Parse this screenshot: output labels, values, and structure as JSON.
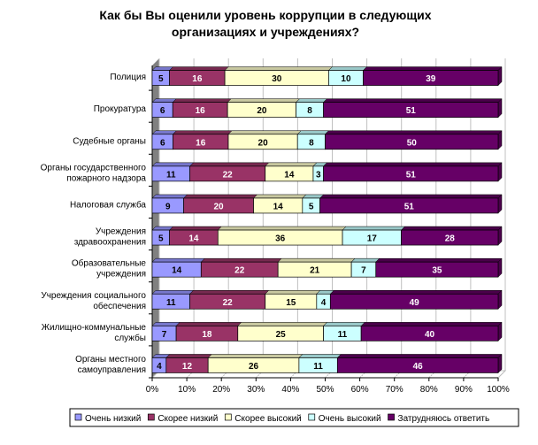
{
  "chart_data": {
    "type": "bar",
    "orientation": "horizontal",
    "stacked": "percent",
    "title_lines": [
      "Как бы Вы оценили уровень коррупции в следующих",
      "организациях и учреждениях?"
    ],
    "categories": [
      [
        "Полиция"
      ],
      [
        "Прокуратура"
      ],
      [
        "Судебные органы"
      ],
      [
        "Органы государственного",
        "пожарного надзора"
      ],
      [
        "Налоговая служба"
      ],
      [
        "Учреждения",
        "здравоохранения"
      ],
      [
        "Образовательные",
        "учреждения"
      ],
      [
        "Учреждения социального",
        "обеспечения"
      ],
      [
        "Жилищно-коммунальные",
        "службы"
      ],
      [
        "Органы местного",
        "самоуправления"
      ]
    ],
    "series": [
      {
        "name": "Очень низкий",
        "color": "#9999ff",
        "top": "#7777cc",
        "text": "#000000",
        "values": [
          5,
          6,
          6,
          11,
          9,
          5,
          14,
          11,
          7,
          4
        ]
      },
      {
        "name": "Скорее низкий",
        "color": "#993366",
        "top": "#772a50",
        "text": "#ffffff",
        "values": [
          16,
          16,
          16,
          22,
          20,
          14,
          22,
          22,
          18,
          12
        ]
      },
      {
        "name": "Скорее высокий",
        "color": "#ffffcc",
        "top": "#c8c8a0",
        "text": "#000000",
        "values": [
          30,
          20,
          20,
          14,
          14,
          36,
          21,
          15,
          25,
          26
        ]
      },
      {
        "name": "Очень высокий",
        "color": "#ccffff",
        "top": "#99c8c8",
        "text": "#000000",
        "values": [
          10,
          8,
          8,
          3,
          5,
          17,
          7,
          4,
          11,
          11
        ]
      },
      {
        "name": "Затрудняюсь ответить",
        "color": "#660066",
        "top": "#4a004a",
        "text": "#ffffff",
        "values": [
          39,
          51,
          50,
          51,
          51,
          28,
          35,
          49,
          40,
          46
        ]
      }
    ],
    "x_ticks": [
      "0%",
      "10%",
      "20%",
      "30%",
      "40%",
      "50%",
      "60%",
      "70%",
      "80%",
      "90%",
      "100%"
    ],
    "xlim": [
      0,
      100
    ],
    "grid": true,
    "legend_position": "bottom"
  }
}
